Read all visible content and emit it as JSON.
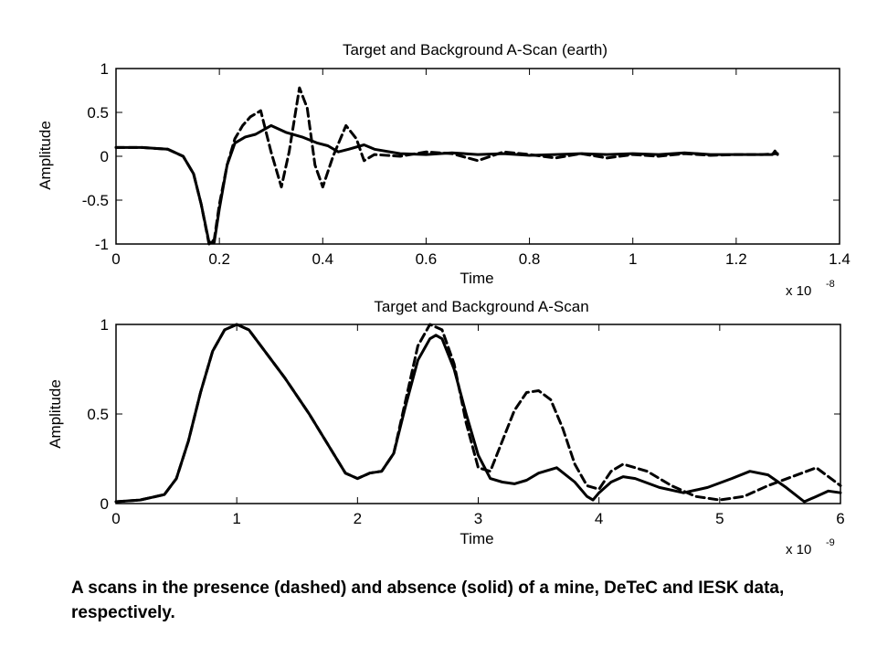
{
  "caption": "A scans in the presence (dashed) and absence (solid) of a mine, DeTeC and IESK data, respectively.",
  "chart_data": [
    {
      "type": "line",
      "title": "Target and Background A-Scan (earth)",
      "xlabel": "Time",
      "ylabel": "Amplitude",
      "x_multiplier": "x 10",
      "x_multiplier_exp": "-8",
      "xlim": [
        0,
        1.4
      ],
      "ylim": [
        -1,
        1
      ],
      "xticks": [
        0,
        0.2,
        0.4,
        0.6,
        0.8,
        1,
        1.2,
        1.4
      ],
      "xtick_labels": [
        "0",
        "0.2",
        "0.4",
        "0.6",
        "0.8",
        "1",
        "1.2",
        "1.4"
      ],
      "yticks": [
        -1,
        -0.5,
        0,
        0.5,
        1
      ],
      "ytick_labels": [
        "-1",
        "-0.5",
        "0",
        "0.5",
        "1"
      ],
      "series": [
        {
          "style": "solid",
          "x": [
            0,
            0.05,
            0.1,
            0.13,
            0.15,
            0.165,
            0.18,
            0.19,
            0.2,
            0.215,
            0.23,
            0.25,
            0.27,
            0.3,
            0.33,
            0.36,
            0.39,
            0.41,
            0.43,
            0.45,
            0.48,
            0.5,
            0.55,
            0.6,
            0.65,
            0.7,
            0.75,
            0.8,
            0.85,
            0.9,
            0.95,
            1.0,
            1.05,
            1.1,
            1.15,
            1.2,
            1.25,
            1.27,
            1.275,
            1.28
          ],
          "y": [
            0.1,
            0.1,
            0.08,
            0.0,
            -0.2,
            -0.55,
            -0.98,
            -0.98,
            -0.6,
            -0.1,
            0.15,
            0.22,
            0.25,
            0.35,
            0.27,
            0.22,
            0.15,
            0.12,
            0.05,
            0.08,
            0.13,
            0.08,
            0.03,
            0.02,
            0.04,
            0.02,
            0.03,
            0.01,
            0.02,
            0.03,
            0.02,
            0.03,
            0.02,
            0.04,
            0.02,
            0.02,
            0.02,
            0.02,
            0.06,
            0.02
          ]
        },
        {
          "style": "dashed",
          "x": [
            0,
            0.05,
            0.1,
            0.13,
            0.15,
            0.165,
            0.18,
            0.19,
            0.2,
            0.215,
            0.23,
            0.245,
            0.26,
            0.28,
            0.3,
            0.32,
            0.335,
            0.355,
            0.37,
            0.385,
            0.4,
            0.42,
            0.445,
            0.465,
            0.48,
            0.5,
            0.55,
            0.6,
            0.65,
            0.7,
            0.75,
            0.8,
            0.85,
            0.9,
            0.95,
            1.0,
            1.05,
            1.1,
            1.15,
            1.2,
            1.25,
            1.28
          ],
          "y": [
            0.1,
            0.1,
            0.08,
            0.0,
            -0.2,
            -0.55,
            -1.0,
            -0.95,
            -0.55,
            -0.1,
            0.2,
            0.35,
            0.45,
            0.52,
            0.05,
            -0.35,
            0.05,
            0.78,
            0.55,
            -0.1,
            -0.35,
            0.0,
            0.35,
            0.2,
            -0.05,
            0.02,
            0.0,
            0.05,
            0.03,
            -0.05,
            0.05,
            0.02,
            -0.02,
            0.03,
            -0.02,
            0.02,
            0.0,
            0.03,
            0.01,
            0.02,
            0.02,
            0.03
          ]
        }
      ]
    },
    {
      "type": "line",
      "title": "Target and Background A-Scan",
      "xlabel": "Time",
      "ylabel": "Amplitude",
      "x_multiplier": "x 10",
      "x_multiplier_exp": "-9",
      "xlim": [
        0,
        6
      ],
      "ylim": [
        0,
        1
      ],
      "xticks": [
        0,
        1,
        2,
        3,
        4,
        5,
        6
      ],
      "xtick_labels": [
        "0",
        "1",
        "2",
        "3",
        "4",
        "5",
        "6"
      ],
      "yticks": [
        0,
        0.5,
        1
      ],
      "ytick_labels": [
        "0",
        "0.5",
        "1"
      ],
      "series": [
        {
          "style": "solid",
          "x": [
            0,
            0.2,
            0.4,
            0.5,
            0.6,
            0.7,
            0.8,
            0.9,
            1.0,
            1.1,
            1.2,
            1.4,
            1.6,
            1.8,
            1.9,
            2.0,
            2.1,
            2.2,
            2.3,
            2.4,
            2.5,
            2.6,
            2.65,
            2.7,
            2.8,
            2.9,
            3.0,
            3.1,
            3.2,
            3.3,
            3.4,
            3.5,
            3.65,
            3.8,
            3.9,
            3.95,
            4.0,
            4.1,
            4.2,
            4.3,
            4.5,
            4.7,
            4.9,
            5.1,
            5.25,
            5.4,
            5.55,
            5.7,
            5.8,
            5.9,
            6.0
          ],
          "y": [
            0.01,
            0.02,
            0.05,
            0.14,
            0.35,
            0.62,
            0.85,
            0.97,
            1.0,
            0.97,
            0.88,
            0.7,
            0.5,
            0.28,
            0.17,
            0.14,
            0.17,
            0.18,
            0.28,
            0.55,
            0.8,
            0.92,
            0.94,
            0.92,
            0.75,
            0.5,
            0.27,
            0.14,
            0.12,
            0.11,
            0.13,
            0.17,
            0.2,
            0.12,
            0.04,
            0.02,
            0.06,
            0.12,
            0.15,
            0.14,
            0.09,
            0.06,
            0.09,
            0.14,
            0.18,
            0.16,
            0.09,
            0.01,
            0.04,
            0.07,
            0.06
          ]
        },
        {
          "style": "dashed",
          "x": [
            0,
            0.2,
            0.4,
            0.5,
            0.6,
            0.7,
            0.8,
            0.9,
            1.0,
            1.1,
            1.2,
            1.4,
            1.6,
            1.8,
            1.9,
            2.0,
            2.1,
            2.2,
            2.3,
            2.4,
            2.5,
            2.6,
            2.7,
            2.8,
            2.9,
            3.0,
            3.1,
            3.2,
            3.3,
            3.4,
            3.5,
            3.6,
            3.7,
            3.8,
            3.9,
            4.0,
            4.1,
            4.2,
            4.4,
            4.6,
            4.8,
            5.0,
            5.2,
            5.4,
            5.6,
            5.8,
            6.0
          ],
          "y": [
            0.01,
            0.02,
            0.05,
            0.14,
            0.35,
            0.62,
            0.85,
            0.97,
            1.0,
            0.97,
            0.88,
            0.7,
            0.5,
            0.28,
            0.17,
            0.14,
            0.17,
            0.18,
            0.28,
            0.58,
            0.88,
            1.0,
            0.97,
            0.78,
            0.45,
            0.2,
            0.18,
            0.35,
            0.52,
            0.62,
            0.63,
            0.58,
            0.42,
            0.22,
            0.1,
            0.08,
            0.18,
            0.22,
            0.18,
            0.1,
            0.04,
            0.02,
            0.04,
            0.1,
            0.15,
            0.2,
            0.1
          ]
        }
      ]
    }
  ]
}
